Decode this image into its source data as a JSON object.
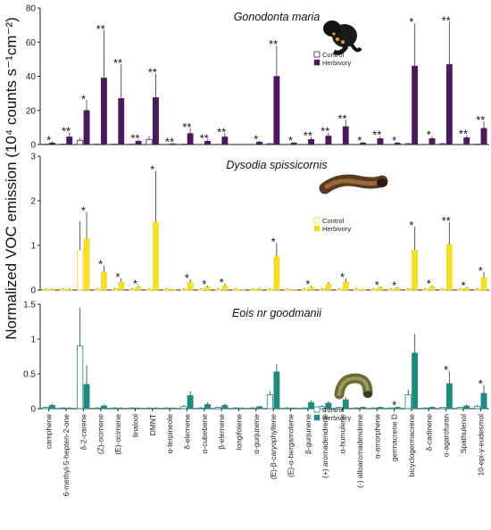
{
  "y_axis_label": "Normalized VOC emission (10⁴ counts s⁻¹cm⁻²)",
  "legend": {
    "control": "Control",
    "herbivory": "Herbivory"
  },
  "icons": [
    "black-caterpillar-icon",
    "brown-caterpillar-icon",
    "green-caterpillar-icon"
  ],
  "chart_data": [
    {
      "type": "bar",
      "title": "Gonodonta maria",
      "ylim": [
        0,
        80
      ],
      "yticks": [
        0,
        20,
        40,
        60,
        80
      ],
      "colors": {
        "control": "#ffffff",
        "herbivory": "#4a1a5c"
      },
      "categories": [
        "camphene",
        "6-methyl-5-hepten-2-one",
        "δ-2-carene",
        "(Z)-ocimene",
        "(E)-ocimene",
        "linalool",
        "DMNT",
        "α-terpineole",
        "δ-elemene",
        "α-cubebene",
        "β-elemene",
        "longifolene",
        "α-gurjunene",
        "(E)-β-caryophyllene",
        "(E)-α-bergamotene",
        "β-gurjunene",
        "(+) aromadendrene",
        "α-humulene",
        "(-) alloaromadendrene",
        "α-amorphene",
        "germacrene D",
        "bicyclogermacrene",
        "δ-cadinene",
        "α-agarofuran",
        "Spathulenol",
        "10-epi-γ-eudesmol"
      ],
      "series": [
        {
          "name": "Control",
          "values": [
            0.2,
            0.2,
            2.5,
            0.2,
            0.2,
            0.2,
            3,
            0.1,
            0.2,
            0.1,
            0.1,
            0.1,
            0.1,
            0.5,
            0.1,
            0.1,
            0.1,
            0.1,
            0.1,
            0.1,
            0.1,
            0.5,
            0.1,
            0.5,
            0.1,
            0.2
          ],
          "errors": [
            0.2,
            0.2,
            1.5,
            0.2,
            0.2,
            0.2,
            2,
            0.1,
            0.2,
            0.1,
            0.1,
            0.1,
            0.1,
            0.5,
            0.1,
            0.1,
            0.1,
            0.1,
            0.1,
            0.1,
            0.1,
            0.5,
            0.1,
            0.5,
            0.1,
            0.2
          ]
        },
        {
          "name": "Herbivory",
          "values": [
            1,
            4.5,
            20,
            39,
            27,
            2,
            27.5,
            0.5,
            6.5,
            2,
            4.5,
            0.2,
            1.5,
            40,
            1,
            3,
            5,
            10.5,
            1,
            3.5,
            1,
            46,
            3.5,
            47,
            4,
            9.5
          ],
          "errors": [
            0.8,
            2.5,
            6,
            28,
            20,
            1,
            14,
            0.3,
            3,
            1,
            2,
            0.1,
            0.8,
            18,
            0.5,
            1.5,
            2,
            4,
            0.5,
            1.5,
            0.5,
            25,
            1.5,
            25,
            1.5,
            4
          ]
        }
      ],
      "significance": [
        "*",
        "**",
        "*",
        "**",
        "**",
        "**",
        "**",
        "**",
        "**",
        "**",
        "**",
        "",
        "*",
        "**",
        "*",
        "**",
        "**",
        "**",
        "*",
        "**",
        "*",
        "*",
        "*",
        "**",
        "**",
        "**"
      ]
    },
    {
      "type": "bar",
      "title": "Dysodia spissicornis",
      "ylim": [
        0,
        3
      ],
      "yticks": [
        0,
        1,
        2,
        3
      ],
      "colors": {
        "control": "#ffffff",
        "herbivory": "#f5de2a"
      },
      "categories": [
        "camphene",
        "6-methyl-5-hepten-2-one",
        "δ-2-carene",
        "(Z)-ocimene",
        "(E)-ocimene",
        "linalool",
        "DMNT",
        "α-terpineole",
        "δ-elemene",
        "α-cubebene",
        "β-elemene",
        "longifolene",
        "α-gurjunene",
        "(E)-β-caryophyllene",
        "(E)-α-bergamotene",
        "β-gurjunene",
        "(+) aromadendrene",
        "α-humulene",
        "(-) alloaromadendrene",
        "α-amorphene",
        "germacrene D",
        "bicyclogermacrene",
        "δ-cadinene",
        "α-agarofuran",
        "Spathulenol",
        "10-epi-γ-eudesmol"
      ],
      "series": [
        {
          "name": "Control",
          "values": [
            0.02,
            0.02,
            0.9,
            0.02,
            0.02,
            0.02,
            0.02,
            0.02,
            0.02,
            0.02,
            0.02,
            0.02,
            0.02,
            0.02,
            0.02,
            0.02,
            0.02,
            0.02,
            0.02,
            0.02,
            0.02,
            0.02,
            0.02,
            0.02,
            0.02,
            0.02
          ],
          "errors": [
            0.02,
            0.02,
            0.65,
            0.02,
            0.02,
            0.02,
            0.02,
            0.02,
            0.02,
            0.02,
            0.02,
            0.02,
            0.02,
            0.02,
            0.02,
            0.02,
            0.02,
            0.02,
            0.02,
            0.02,
            0.02,
            0.02,
            0.02,
            0.02,
            0.02,
            0.02
          ]
        },
        {
          "name": "Herbivory",
          "values": [
            0.02,
            0.02,
            1.15,
            0.4,
            0.18,
            0.07,
            1.52,
            0.02,
            0.17,
            0.07,
            0.1,
            0.01,
            0.03,
            0.75,
            0.01,
            0.07,
            0.13,
            0.18,
            0.02,
            0.06,
            0.05,
            0.9,
            0.08,
            1.02,
            0.05,
            0.28
          ],
          "errors": [
            0.02,
            0.02,
            0.6,
            0.15,
            0.08,
            0.04,
            1.15,
            0.01,
            0.07,
            0.03,
            0.04,
            0.01,
            0.02,
            0.3,
            0.01,
            0.03,
            0.05,
            0.08,
            0.01,
            0.02,
            0.02,
            0.52,
            0.03,
            0.5,
            0.02,
            0.12
          ]
        }
      ],
      "significance": [
        "",
        "",
        "*",
        "*",
        "*",
        "*",
        "*",
        "",
        "*",
        "*",
        "*",
        "",
        "",
        "*",
        "",
        "*",
        "",
        "*",
        "",
        "*",
        "*",
        "*",
        "*",
        "**",
        "*",
        "*"
      ]
    },
    {
      "type": "bar",
      "title": "Eois nr goodmanii",
      "ylim": [
        0,
        1.5
      ],
      "yticks": [
        0,
        0.5,
        1,
        1.5
      ],
      "colors": {
        "control": "#ffffff",
        "herbivory": "#1f8a80"
      },
      "categories": [
        "camphene",
        "6-methyl-5-hepten-2-one",
        "δ-2-carene",
        "(Z)-ocimene",
        "(E)-ocimene",
        "linalool",
        "DMNT",
        "α-terpineole",
        "δ-elemene",
        "α-cubebene",
        "β-elemene",
        "longifolene",
        "α-gurjunene",
        "(E)-β-caryophyllene",
        "(E)-α-bergamotene",
        "β-gurjunene",
        "(+) aromadendrene",
        "α-humulene",
        "(-) alloaromadendrene",
        "α-amorphene",
        "germacrene D",
        "bicyclogermacrene",
        "δ-cadinene",
        "α-agarofuran",
        "Spathulenol",
        "10-epi-γ-eudesmol"
      ],
      "series": [
        {
          "name": "Control",
          "values": [
            0.02,
            0.01,
            0.9,
            0.01,
            0.01,
            0.01,
            0.01,
            0.01,
            0.03,
            0.01,
            0.02,
            0.01,
            0.01,
            0.2,
            0.01,
            0.01,
            0.03,
            0.02,
            0.01,
            0.01,
            0.01,
            0.2,
            0.01,
            0.02,
            0.02,
            0.03
          ],
          "errors": [
            0.01,
            0.01,
            0.55,
            0.01,
            0.01,
            0.01,
            0.01,
            0.01,
            0.02,
            0.01,
            0.01,
            0.01,
            0.01,
            0.05,
            0.01,
            0.01,
            0.02,
            0.01,
            0.01,
            0.01,
            0.01,
            0.07,
            0.01,
            0.01,
            0.01,
            0.02
          ]
        },
        {
          "name": "Herbivory",
          "values": [
            0.05,
            0.01,
            0.35,
            0.04,
            0.01,
            0.01,
            0.01,
            0.01,
            0.19,
            0.06,
            0.05,
            0.01,
            0.03,
            0.53,
            0.01,
            0.09,
            0.08,
            0.13,
            0.02,
            0.02,
            0.02,
            0.8,
            0.02,
            0.36,
            0.04,
            0.22
          ],
          "errors": [
            0.02,
            0.01,
            0.27,
            0.02,
            0.01,
            0.01,
            0.01,
            0.01,
            0.06,
            0.03,
            0.02,
            0.01,
            0.01,
            0.11,
            0.01,
            0.03,
            0.03,
            0.04,
            0.01,
            0.01,
            0.01,
            0.27,
            0.01,
            0.18,
            0.02,
            0.12
          ]
        }
      ],
      "significance": [
        "",
        "",
        "",
        "",
        "",
        "",
        "",
        "",
        "",
        "",
        "",
        "",
        "",
        "",
        "",
        "",
        "",
        "",
        "",
        "",
        "*",
        "",
        "",
        "*",
        "",
        "*"
      ]
    }
  ]
}
